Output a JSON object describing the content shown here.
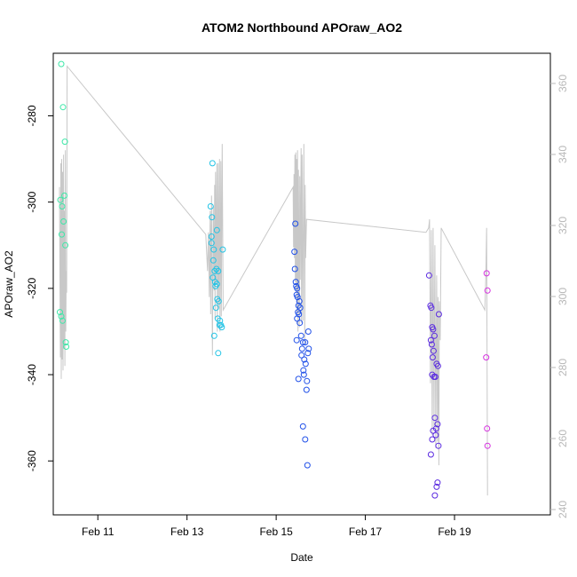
{
  "chart_data": {
    "type": "scatter",
    "title": "ATOM2 Northbound APOraw_AO2",
    "xlabel": "Date",
    "ylabel": "APOraw_AO2",
    "xlim": [
      10.0,
      21.15
    ],
    "ylim": [
      -372.5,
      -265.5
    ],
    "y2lim": [
      238.5,
      368.5
    ],
    "x_ticks": [
      {
        "value": 11,
        "label": "Feb 11"
      },
      {
        "value": 13,
        "label": "Feb 13"
      },
      {
        "value": 15,
        "label": "Feb 15"
      },
      {
        "value": 17,
        "label": "Feb 17"
      },
      {
        "value": 19,
        "label": "Feb 19"
      }
    ],
    "y_ticks": [
      {
        "value": -280,
        "label": "-280"
      },
      {
        "value": -300,
        "label": "-300"
      },
      {
        "value": -320,
        "label": "-320"
      },
      {
        "value": -340,
        "label": "-340"
      },
      {
        "value": -360,
        "label": "-360"
      }
    ],
    "y2_ticks": [
      {
        "value": 240,
        "label": "240"
      },
      {
        "value": 260,
        "label": "260"
      },
      {
        "value": 280,
        "label": "280"
      },
      {
        "value": 300,
        "label": "300"
      },
      {
        "value": 320,
        "label": "320"
      },
      {
        "value": 340,
        "label": "340"
      },
      {
        "value": 360,
        "label": "360"
      }
    ],
    "grid": false,
    "line_color": "#c8c8c8",
    "series": [
      {
        "color": "#3ee8a8",
        "points": [
          [
            10.18,
            -268
          ],
          [
            10.22,
            -278
          ],
          [
            10.26,
            -286
          ],
          [
            10.25,
            -298.5
          ],
          [
            10.16,
            -299.5
          ],
          [
            10.2,
            -301
          ],
          [
            10.23,
            -304.5
          ],
          [
            10.19,
            -307.5
          ],
          [
            10.27,
            -310
          ],
          [
            10.15,
            -325.5
          ],
          [
            10.18,
            -326.5
          ],
          [
            10.21,
            -327.5
          ],
          [
            10.28,
            -332.5
          ],
          [
            10.29,
            -333.5
          ]
        ]
      },
      {
        "color": "#22c4e6",
        "points": [
          [
            13.57,
            -291
          ],
          [
            13.53,
            -301
          ],
          [
            13.56,
            -303.5
          ],
          [
            13.55,
            -308
          ],
          [
            13.6,
            -311
          ],
          [
            13.59,
            -313.5
          ],
          [
            13.66,
            -315.5
          ],
          [
            13.62,
            -316
          ],
          [
            13.7,
            -316
          ],
          [
            13.58,
            -317.5
          ],
          [
            13.63,
            -318.5
          ],
          [
            13.67,
            -319
          ],
          [
            13.64,
            -319.5
          ],
          [
            13.68,
            -322.5
          ],
          [
            13.71,
            -323
          ],
          [
            13.65,
            -324.5
          ],
          [
            13.69,
            -327
          ],
          [
            13.74,
            -327.5
          ],
          [
            13.73,
            -328.5
          ],
          [
            13.76,
            -328.5
          ],
          [
            13.78,
            -329
          ],
          [
            13.61,
            -331
          ],
          [
            13.7,
            -335
          ],
          [
            13.67,
            -306.5
          ],
          [
            13.8,
            -311
          ],
          [
            13.55,
            -309.5
          ]
        ]
      },
      {
        "color": "#2050e8",
        "points": [
          [
            15.43,
            -305
          ],
          [
            15.41,
            -311.5
          ],
          [
            15.42,
            -315.5
          ],
          [
            15.44,
            -318.5
          ],
          [
            15.45,
            -319.5
          ],
          [
            15.47,
            -320
          ],
          [
            15.46,
            -321.5
          ],
          [
            15.48,
            -322
          ],
          [
            15.52,
            -323
          ],
          [
            15.5,
            -324
          ],
          [
            15.54,
            -324.5
          ],
          [
            15.49,
            -325.5
          ],
          [
            15.51,
            -326
          ],
          [
            15.47,
            -327
          ],
          [
            15.53,
            -328
          ],
          [
            15.56,
            -331
          ],
          [
            15.72,
            -330
          ],
          [
            15.46,
            -332
          ],
          [
            15.6,
            -332.5
          ],
          [
            15.65,
            -332.5
          ],
          [
            15.58,
            -334
          ],
          [
            15.73,
            -334
          ],
          [
            15.71,
            -335
          ],
          [
            15.57,
            -335.5
          ],
          [
            15.63,
            -336.5
          ],
          [
            15.66,
            -337.5
          ],
          [
            15.61,
            -339
          ],
          [
            15.62,
            -340
          ],
          [
            15.5,
            -341
          ],
          [
            15.69,
            -341.5
          ],
          [
            15.68,
            -343.5
          ],
          [
            15.6,
            -352
          ],
          [
            15.65,
            -355
          ],
          [
            15.7,
            -361
          ]
        ]
      },
      {
        "color": "#5a2ae0",
        "points": [
          [
            18.43,
            -317
          ],
          [
            18.46,
            -324
          ],
          [
            18.48,
            -324.5
          ],
          [
            18.5,
            -329
          ],
          [
            18.52,
            -329.5
          ],
          [
            18.55,
            -331
          ],
          [
            18.47,
            -332
          ],
          [
            18.49,
            -333
          ],
          [
            18.53,
            -334.5
          ],
          [
            18.51,
            -336
          ],
          [
            18.6,
            -337.5
          ],
          [
            18.63,
            -338
          ],
          [
            18.5,
            -340
          ],
          [
            18.54,
            -340.5
          ],
          [
            18.57,
            -340.5
          ],
          [
            18.65,
            -326
          ],
          [
            18.56,
            -350
          ],
          [
            18.62,
            -351.5
          ],
          [
            18.52,
            -353
          ],
          [
            18.59,
            -352.5
          ],
          [
            18.58,
            -354
          ],
          [
            18.5,
            -355
          ],
          [
            18.64,
            -356.5
          ],
          [
            18.47,
            -358.5
          ],
          [
            18.62,
            -365
          ],
          [
            18.6,
            -366
          ],
          [
            18.56,
            -368
          ]
        ]
      },
      {
        "color": "#d630e0",
        "points": [
          [
            19.72,
            -316.5
          ],
          [
            19.74,
            -320.5
          ],
          [
            19.71,
            -336
          ],
          [
            19.73,
            -352.5
          ],
          [
            19.74,
            -356.5
          ]
        ]
      }
    ],
    "line_path": [
      [
        10.14,
        -296.5
      ],
      [
        10.16,
        -336
      ],
      [
        10.17,
        -291
      ],
      [
        10.18,
        -341
      ],
      [
        10.19,
        -290
      ],
      [
        10.2,
        -336.5
      ],
      [
        10.21,
        -293
      ],
      [
        10.22,
        -339
      ],
      [
        10.23,
        -289
      ],
      [
        10.24,
        -334
      ],
      [
        10.25,
        -302
      ],
      [
        10.26,
        -338
      ],
      [
        10.27,
        -288
      ],
      [
        10.28,
        -330
      ],
      [
        10.29,
        -316
      ],
      [
        10.3,
        -321
      ],
      [
        10.31,
        -268.5
      ],
      [
        13.42,
        -307.5
      ],
      [
        13.46,
        -316
      ],
      [
        13.48,
        -307
      ],
      [
        13.5,
        -322
      ],
      [
        13.52,
        -302
      ],
      [
        13.53,
        -326
      ],
      [
        13.55,
        -298.5
      ],
      [
        13.57,
        -335.5
      ],
      [
        13.59,
        -301
      ],
      [
        13.61,
        -320.5
      ],
      [
        13.62,
        -296
      ],
      [
        13.63,
        -327
      ],
      [
        13.64,
        -293
      ],
      [
        13.65,
        -319
      ],
      [
        13.67,
        -291
      ],
      [
        13.68,
        -330
      ],
      [
        13.7,
        -291
      ],
      [
        13.71,
        -324.5
      ],
      [
        13.73,
        -290
      ],
      [
        13.74,
        -330
      ],
      [
        13.76,
        -290.5
      ],
      [
        13.77,
        -326.5
      ],
      [
        13.79,
        -286.5
      ],
      [
        13.81,
        -325
      ],
      [
        15.38,
        -296.5
      ],
      [
        15.39,
        -310.5
      ],
      [
        15.4,
        -293.5
      ],
      [
        15.41,
        -313
      ],
      [
        15.42,
        -289
      ],
      [
        15.43,
        -318.5
      ],
      [
        15.44,
        -288.5
      ],
      [
        15.45,
        -321
      ],
      [
        15.46,
        -290
      ],
      [
        15.47,
        -325.5
      ],
      [
        15.48,
        -288
      ],
      [
        15.49,
        -330
      ],
      [
        15.5,
        -292.5
      ],
      [
        15.52,
        -329
      ],
      [
        15.53,
        -294
      ],
      [
        15.54,
        -318
      ],
      [
        15.56,
        -287.5
      ],
      [
        15.57,
        -328
      ],
      [
        15.58,
        -289
      ],
      [
        15.6,
        -327.5
      ],
      [
        15.62,
        -286.5
      ],
      [
        15.64,
        -333
      ],
      [
        15.65,
        -296
      ],
      [
        15.66,
        -313
      ],
      [
        15.68,
        -304
      ],
      [
        18.36,
        -307
      ],
      [
        18.42,
        -306
      ],
      [
        18.44,
        -304
      ],
      [
        18.46,
        -342
      ],
      [
        18.48,
        -306.5
      ],
      [
        18.5,
        -354
      ],
      [
        18.52,
        -306
      ],
      [
        18.54,
        -352
      ],
      [
        18.56,
        -310
      ],
      [
        18.58,
        -357
      ],
      [
        18.6,
        -317
      ],
      [
        18.62,
        -355.5
      ],
      [
        18.63,
        -322
      ],
      [
        18.65,
        -361
      ],
      [
        18.66,
        -323
      ],
      [
        18.68,
        -332
      ],
      [
        18.7,
        -306
      ],
      [
        19.68,
        -325
      ],
      [
        19.7,
        -318
      ],
      [
        19.72,
        -306
      ],
      [
        19.74,
        -368
      ]
    ]
  }
}
